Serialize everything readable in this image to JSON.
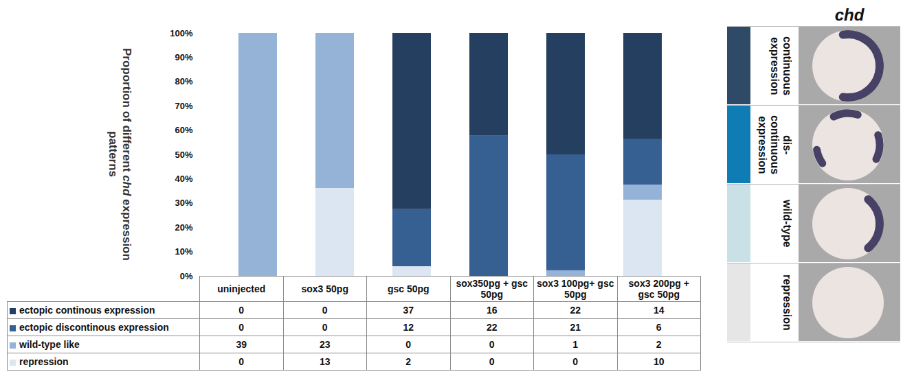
{
  "chart_data": {
    "type": "bar",
    "stacked": true,
    "categories": [
      "uninjected",
      "sox3 50pg",
      "gsc 50pg",
      "sox350pg + gsc 50pg",
      "sox3 100pg+ gsc 50pg",
      "sox3 200pg + gsc 50pg"
    ],
    "series": [
      {
        "name": "ectopic continous expression",
        "color": "#243f60",
        "values": [
          0,
          0,
          37,
          16,
          22,
          14
        ]
      },
      {
        "name": "ectopic discontinous expression",
        "color": "#376092",
        "values": [
          0,
          0,
          12,
          22,
          21,
          6
        ]
      },
      {
        "name": "wild-type like",
        "color": "#95b3d7",
        "values": [
          39,
          23,
          0,
          0,
          1,
          2
        ]
      },
      {
        "name": "repression",
        "color": "#dce6f2",
        "values": [
          0,
          13,
          2,
          0,
          0,
          10
        ]
      }
    ],
    "ylabel": "Proportion of different chd expression patterns",
    "ylim": [
      0,
      100
    ],
    "yticks": [
      {
        "value": 0,
        "label": "0%"
      },
      {
        "value": 10,
        "label": "10%"
      },
      {
        "value": 20,
        "label": "20%"
      },
      {
        "value": 30,
        "label": "30%"
      },
      {
        "value": 40,
        "label": "40%"
      },
      {
        "value": 50,
        "label": "50%"
      },
      {
        "value": 60,
        "label": "60%"
      },
      {
        "value": 70,
        "label": "70%"
      },
      {
        "value": 80,
        "label": "80%"
      },
      {
        "value": 90,
        "label": "90%"
      },
      {
        "value": 100,
        "label": "100%"
      }
    ],
    "grid": true,
    "legend": "bottom"
  },
  "image_key": {
    "title": "chd",
    "rows": [
      {
        "label": "continuous expression",
        "color": "#2e4a66"
      },
      {
        "label": "dis-continuous expression",
        "color": "#0f7db3"
      },
      {
        "label": "wild-type",
        "color": "#c9e0e6"
      },
      {
        "label": "repression",
        "color": "#e6e6e6"
      }
    ]
  }
}
